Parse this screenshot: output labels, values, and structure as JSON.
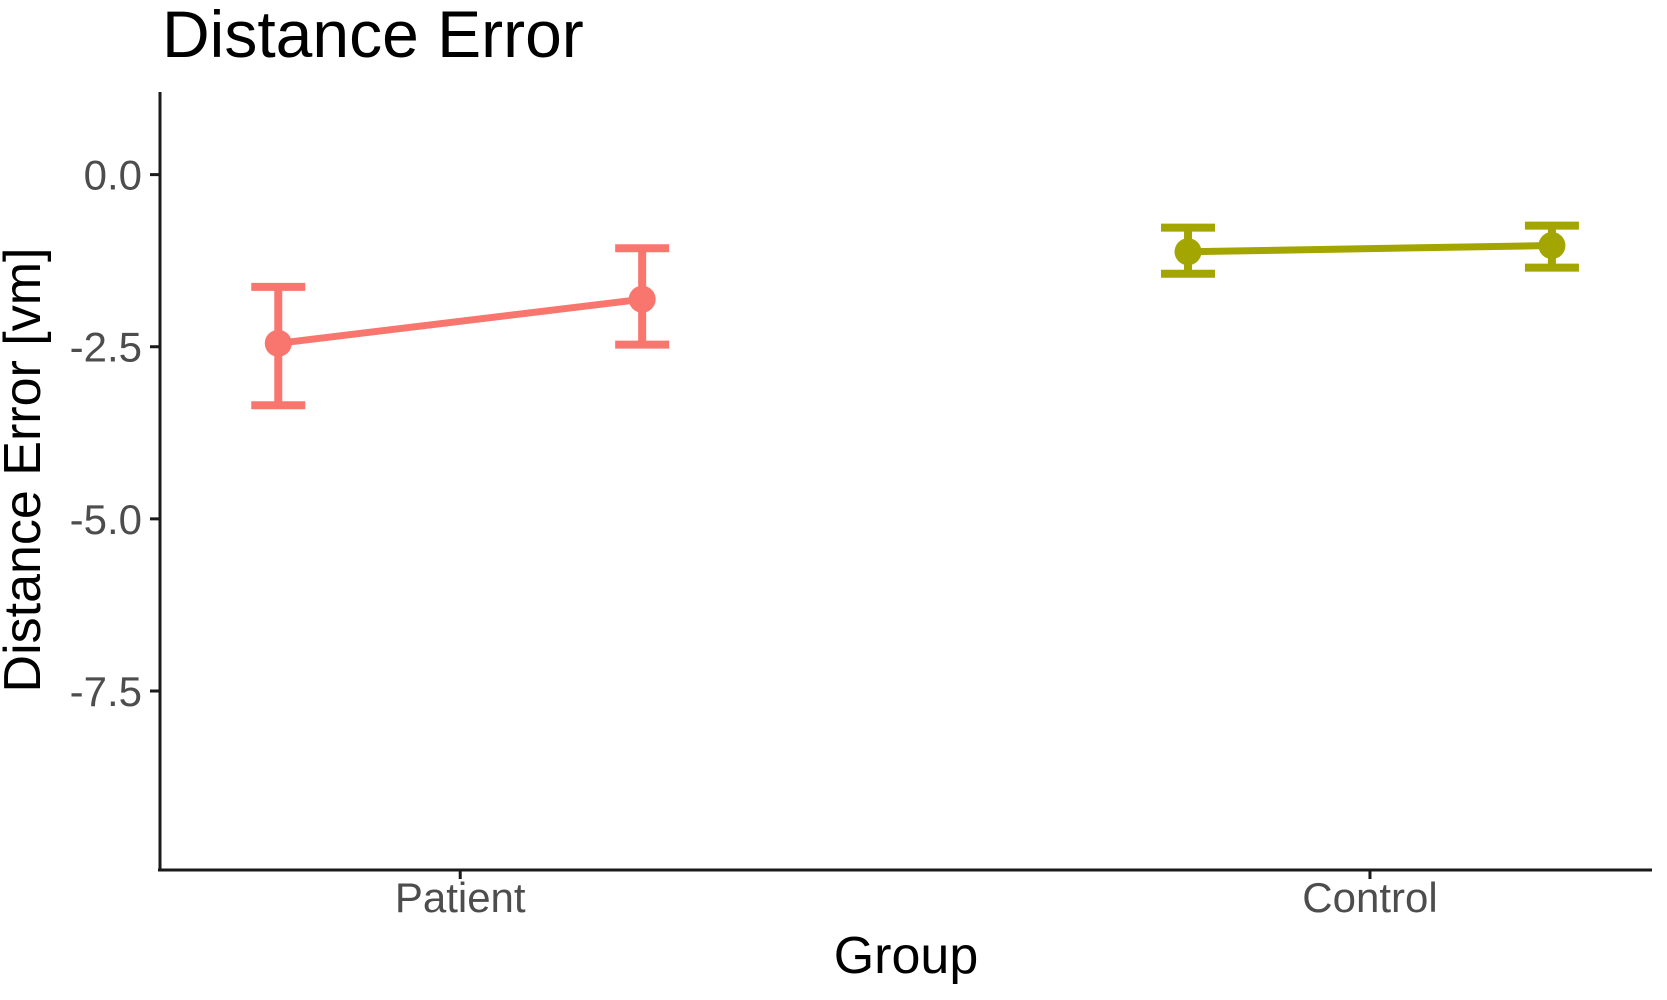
{
  "chart_data": {
    "type": "line",
    "subtype": "pointrange-with-errorbars",
    "title": "Distance Error",
    "xlabel": "Group",
    "ylabel": "Distance Error [vm]",
    "categories": [
      "Patient",
      "Control"
    ],
    "y_ticks": [
      {
        "label": "0.0",
        "value": 0.0
      },
      {
        "label": "-2.5",
        "value": -2.5
      },
      {
        "label": "-5.0",
        "value": -5.0
      },
      {
        "label": "-7.5",
        "value": -7.5
      }
    ],
    "ylim": [
      -10.1,
      1.2
    ],
    "xlim_units": [
      0.67,
      2.31
    ],
    "grid": false,
    "legend": "none",
    "series": [
      {
        "name": "Patient",
        "color": "#F8766D",
        "category_index": 0,
        "points": [
          {
            "x_offset": -0.2,
            "y": -2.45,
            "ci_low": -3.35,
            "ci_high": -1.63
          },
          {
            "x_offset": 0.2,
            "y": -1.81,
            "ci_low": -2.47,
            "ci_high": -1.07
          }
        ]
      },
      {
        "name": "Control",
        "color": "#A3A500",
        "category_index": 1,
        "points": [
          {
            "x_offset": -0.2,
            "y": -1.12,
            "ci_low": -1.44,
            "ci_high": -0.77
          },
          {
            "x_offset": 0.2,
            "y": -1.03,
            "ci_low": -1.35,
            "ci_high": -0.74
          }
        ]
      }
    ],
    "style": {
      "background": "#ffffff",
      "axis_color": "#1a1a1a",
      "tick_label_color": "#4d4d4d",
      "text_color": "#000000"
    }
  }
}
